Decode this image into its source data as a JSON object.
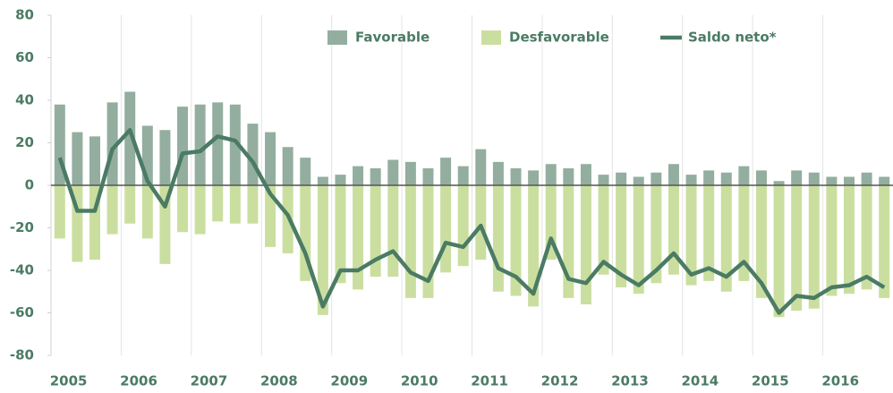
{
  "chart_data": {
    "type": "bar_line",
    "categories": [
      "2005",
      null,
      null,
      null,
      "2006",
      null,
      null,
      null,
      "2007",
      null,
      null,
      null,
      "2008",
      null,
      null,
      null,
      "2009",
      null,
      null,
      null,
      "2010",
      null,
      null,
      null,
      "2011",
      null,
      null,
      null,
      "2012",
      null,
      null,
      null,
      "2013",
      null,
      null,
      null,
      "2014",
      null,
      null,
      null,
      "2015",
      null,
      null,
      null,
      "2016",
      null,
      null,
      null
    ],
    "series": [
      {
        "name": "Favorable",
        "kind": "bar",
        "color": "#93ae9f",
        "values": [
          38,
          25,
          23,
          39,
          44,
          28,
          26,
          37,
          38,
          39,
          38,
          29,
          25,
          18,
          13,
          4,
          5,
          9,
          8,
          12,
          11,
          8,
          13,
          9,
          17,
          11,
          8,
          7,
          10,
          8,
          10,
          5,
          6,
          4,
          6,
          10,
          5,
          7,
          6,
          9,
          7,
          2,
          7,
          6,
          4,
          4,
          6,
          4
        ]
      },
      {
        "name": "Desfavorable",
        "kind": "bar",
        "color": "#cadf9f",
        "values": [
          -25,
          -36,
          -35,
          -23,
          -18,
          -25,
          -37,
          -22,
          -23,
          -17,
          -18,
          -18,
          -29,
          -32,
          -45,
          -61,
          -46,
          -49,
          -43,
          -43,
          -53,
          -53,
          -41,
          -38,
          -35,
          -50,
          -52,
          -57,
          -35,
          -53,
          -56,
          -42,
          -48,
          -51,
          -46,
          -42,
          -47,
          -45,
          -50,
          -45,
          -53,
          -62,
          -59,
          -58,
          -52,
          -51,
          -49,
          -53
        ]
      },
      {
        "name": "Saldo neto*",
        "kind": "line",
        "color": "#4b7b64",
        "values": [
          13,
          -12,
          -12,
          17,
          26,
          2,
          -10,
          15,
          16,
          23,
          21,
          11,
          -4,
          -14,
          -32,
          -57,
          -40,
          -40,
          -35,
          -31,
          -41,
          -45,
          -27,
          -29,
          -19,
          -39,
          -43,
          -51,
          -25,
          -44,
          -46,
          -36,
          -42,
          -47,
          -40,
          -32,
          -42,
          -39,
          -43,
          -36,
          -46,
          -60,
          -52,
          -53,
          -48,
          -47,
          -43,
          -48
        ]
      }
    ],
    "ylim": [
      -80,
      80
    ],
    "yticks": [
      -80,
      -60,
      -40,
      -20,
      0,
      20,
      40,
      60,
      80
    ],
    "grid": false
  }
}
